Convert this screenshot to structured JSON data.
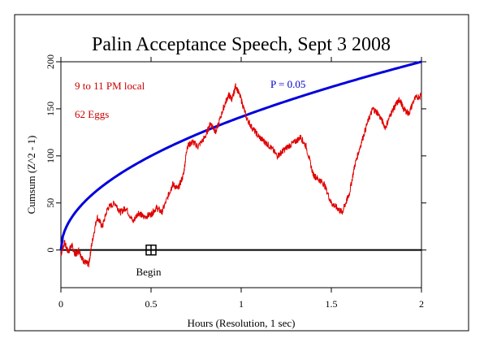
{
  "chart_data": {
    "type": "line",
    "title": "Palin Acceptance Speech, Sept 3 2008",
    "xlabel": "Hours (Resolution, 1 sec)",
    "ylabel": "Cumsum (Z^2 - 1)",
    "xlim": [
      0,
      2
    ],
    "ylim": [
      -40,
      200
    ],
    "x_ticks": [
      0,
      0.5,
      1,
      1.5,
      2
    ],
    "y_ticks": [
      0,
      50,
      100,
      150,
      200
    ],
    "x_tick_labels": [
      "0",
      "0.5",
      "1",
      "1.5",
      "2"
    ],
    "y_tick_labels": [
      "0",
      "50",
      "100",
      "150",
      "200"
    ],
    "grid": false,
    "annotations": {
      "time": "9 to 11 PM local",
      "eggs": "62 Eggs",
      "p_label": "P = 0.05",
      "begin_label": "Begin"
    },
    "begin_marker": {
      "x": 0.5,
      "y": 0
    },
    "colors": {
      "cumsum": "#e00000",
      "p_envelope": "#0000dd",
      "baseline": "#000000",
      "annotation_red": "#cc0000",
      "annotation_blue": "#0000cc"
    },
    "series": [
      {
        "kind": "cumsum",
        "x": [
          0,
          0.02,
          0.04,
          0.06,
          0.08,
          0.1,
          0.12,
          0.14,
          0.155,
          0.17,
          0.2,
          0.23,
          0.26,
          0.3,
          0.33,
          0.36,
          0.4,
          0.43,
          0.46,
          0.5,
          0.53,
          0.56,
          0.6,
          0.62,
          0.65,
          0.68,
          0.7,
          0.73,
          0.76,
          0.8,
          0.83,
          0.86,
          0.9,
          0.93,
          0.95,
          0.97,
          1,
          1.03,
          1.06,
          1.1,
          1.13,
          1.16,
          1.2,
          1.23,
          1.26,
          1.3,
          1.33,
          1.36,
          1.4,
          1.43,
          1.46,
          1.5,
          1.53,
          1.56,
          1.58,
          1.6,
          1.63,
          1.66,
          1.7,
          1.73,
          1.76,
          1.8,
          1.83,
          1.86,
          1.88,
          1.9,
          1.93,
          1.96,
          2
        ],
        "values": [
          -5,
          8,
          -2,
          5,
          -5,
          0,
          -10,
          -14,
          -15,
          5,
          35,
          25,
          45,
          50,
          40,
          45,
          30,
          40,
          35,
          38,
          45,
          40,
          60,
          70,
          65,
          80,
          110,
          115,
          110,
          120,
          135,
          125,
          150,
          165,
          160,
          175,
          160,
          140,
          130,
          120,
          115,
          110,
          100,
          105,
          110,
          115,
          120,
          110,
          80,
          75,
          70,
          50,
          45,
          40,
          50,
          60,
          90,
          110,
          135,
          150,
          145,
          130,
          145,
          155,
          160,
          150,
          145,
          160,
          165
        ]
      }
    ]
  }
}
